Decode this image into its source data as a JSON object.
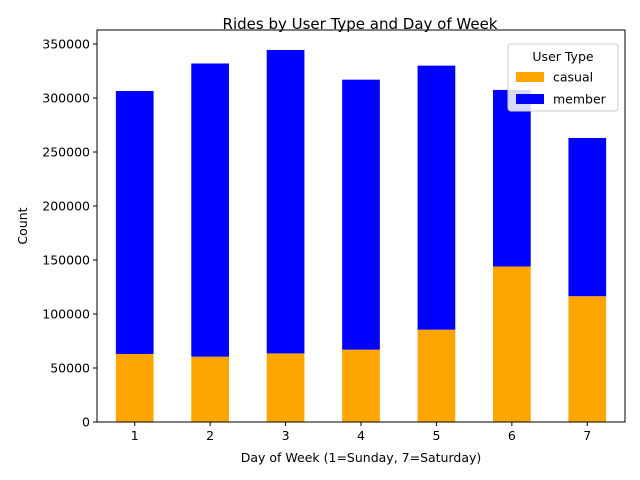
{
  "chart_data": {
    "type": "bar",
    "stacked": true,
    "title": "Rides by User Type and Day of Week",
    "xlabel": "Day of Week (1=Sunday, 7=Saturday)",
    "ylabel": "Count",
    "categories": [
      "1",
      "2",
      "3",
      "4",
      "5",
      "6",
      "7"
    ],
    "series": [
      {
        "name": "casual",
        "color": "#FFA500",
        "values": [
          63000,
          60500,
          63500,
          67000,
          85500,
          144000,
          116500
        ]
      },
      {
        "name": "member",
        "color": "#0000FF",
        "values": [
          243500,
          271500,
          281000,
          250000,
          244500,
          163500,
          146500
        ]
      }
    ],
    "ylim": [
      0,
      363000
    ],
    "yticks": [
      "0",
      "50000",
      "100000",
      "150000",
      "200000",
      "250000",
      "300000",
      "350000"
    ],
    "grid": false,
    "legend": {
      "title": "User Type",
      "position": "top-right"
    }
  }
}
